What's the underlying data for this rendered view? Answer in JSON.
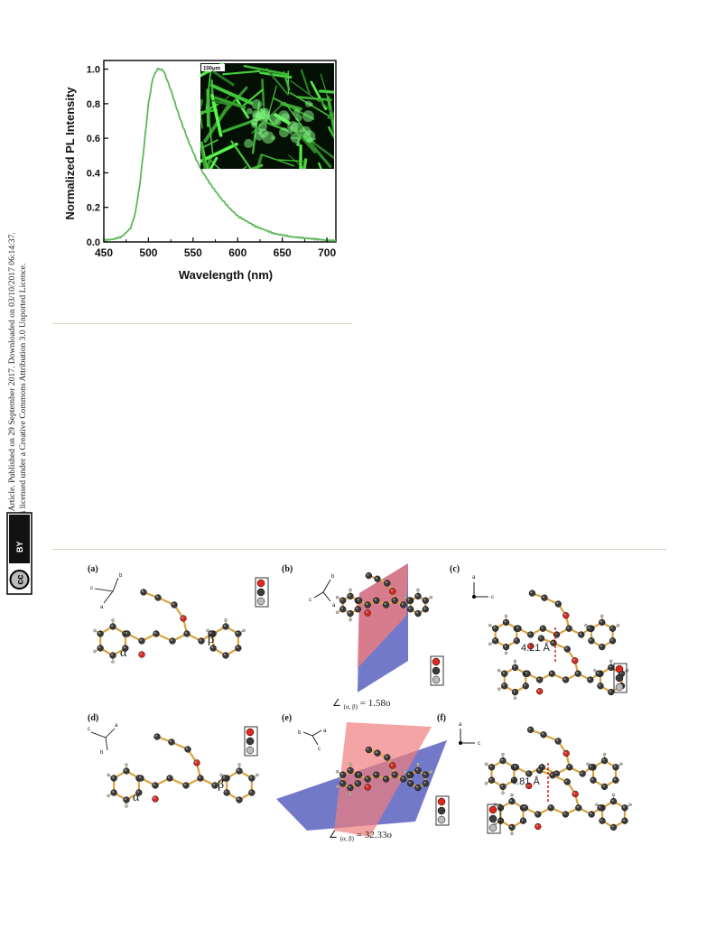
{
  "side_notice": {
    "line1": "Open Access Article. Published on 29 September 2017. Downloaded on 03/10/2017 06:14:37.",
    "line2": "This article is licensed under a Creative Commons Attribution 3.0 Unported Licence.",
    "license_badge": "BY",
    "cc_label": "cc"
  },
  "figure_pl": {
    "inset_scale": "100μm"
  },
  "chart_data": {
    "type": "line",
    "xlabel": "Wavelength (nm)",
    "ylabel": "Normalized PL Intensity",
    "xlim": [
      450,
      710
    ],
    "ylim": [
      0.0,
      1.05
    ],
    "x_ticks": [
      450,
      500,
      550,
      600,
      650,
      700
    ],
    "y_ticks": [
      0.0,
      0.2,
      0.4,
      0.6,
      0.8,
      1.0
    ],
    "grid": false,
    "series": [
      {
        "color": "#5cb85c",
        "x": [
          450,
          460,
          470,
          480,
          485,
          490,
          495,
          500,
          505,
          510,
          513,
          517,
          520,
          525,
          530,
          535,
          540,
          545,
          550,
          555,
          560,
          570,
          580,
          590,
          600,
          610,
          620,
          630,
          640,
          650,
          660,
          670,
          680,
          690,
          700,
          710
        ],
        "y": [
          0.01,
          0.015,
          0.03,
          0.08,
          0.16,
          0.32,
          0.55,
          0.8,
          0.95,
          1.0,
          1.0,
          0.99,
          0.95,
          0.88,
          0.8,
          0.72,
          0.65,
          0.58,
          0.52,
          0.46,
          0.41,
          0.33,
          0.26,
          0.2,
          0.15,
          0.12,
          0.09,
          0.07,
          0.05,
          0.04,
          0.03,
          0.025,
          0.02,
          0.015,
          0.01,
          0.008
        ]
      }
    ]
  },
  "crystal_figure": {
    "panels": [
      {
        "label": "(a)",
        "ring_alpha": "α",
        "ring_beta": "β",
        "axis_a": "a",
        "axis_b": "b",
        "axis_c": "c"
      },
      {
        "label": "(b)",
        "angle": "= 1.58o",
        "angle_sub": "(α, β)",
        "axis_a": "a",
        "axis_b": "b",
        "axis_c": "c"
      },
      {
        "label": "(c)",
        "distance": "4.21 Å",
        "axis_a": "a",
        "axis_c": "c"
      },
      {
        "label": "(d)",
        "ring_alpha": "α",
        "ring_beta": "β",
        "axis_a": "a",
        "axis_b": "b",
        "axis_c": "c"
      },
      {
        "label": "(e)",
        "angle": "= 32.33o",
        "angle_sub": "(α, β)",
        "axis_a": "a",
        "axis_b": "b",
        "axis_c": "c"
      },
      {
        "label": "(f)",
        "distance": "4.81 Å",
        "axis_a": "a",
        "axis_c": "c"
      }
    ]
  }
}
